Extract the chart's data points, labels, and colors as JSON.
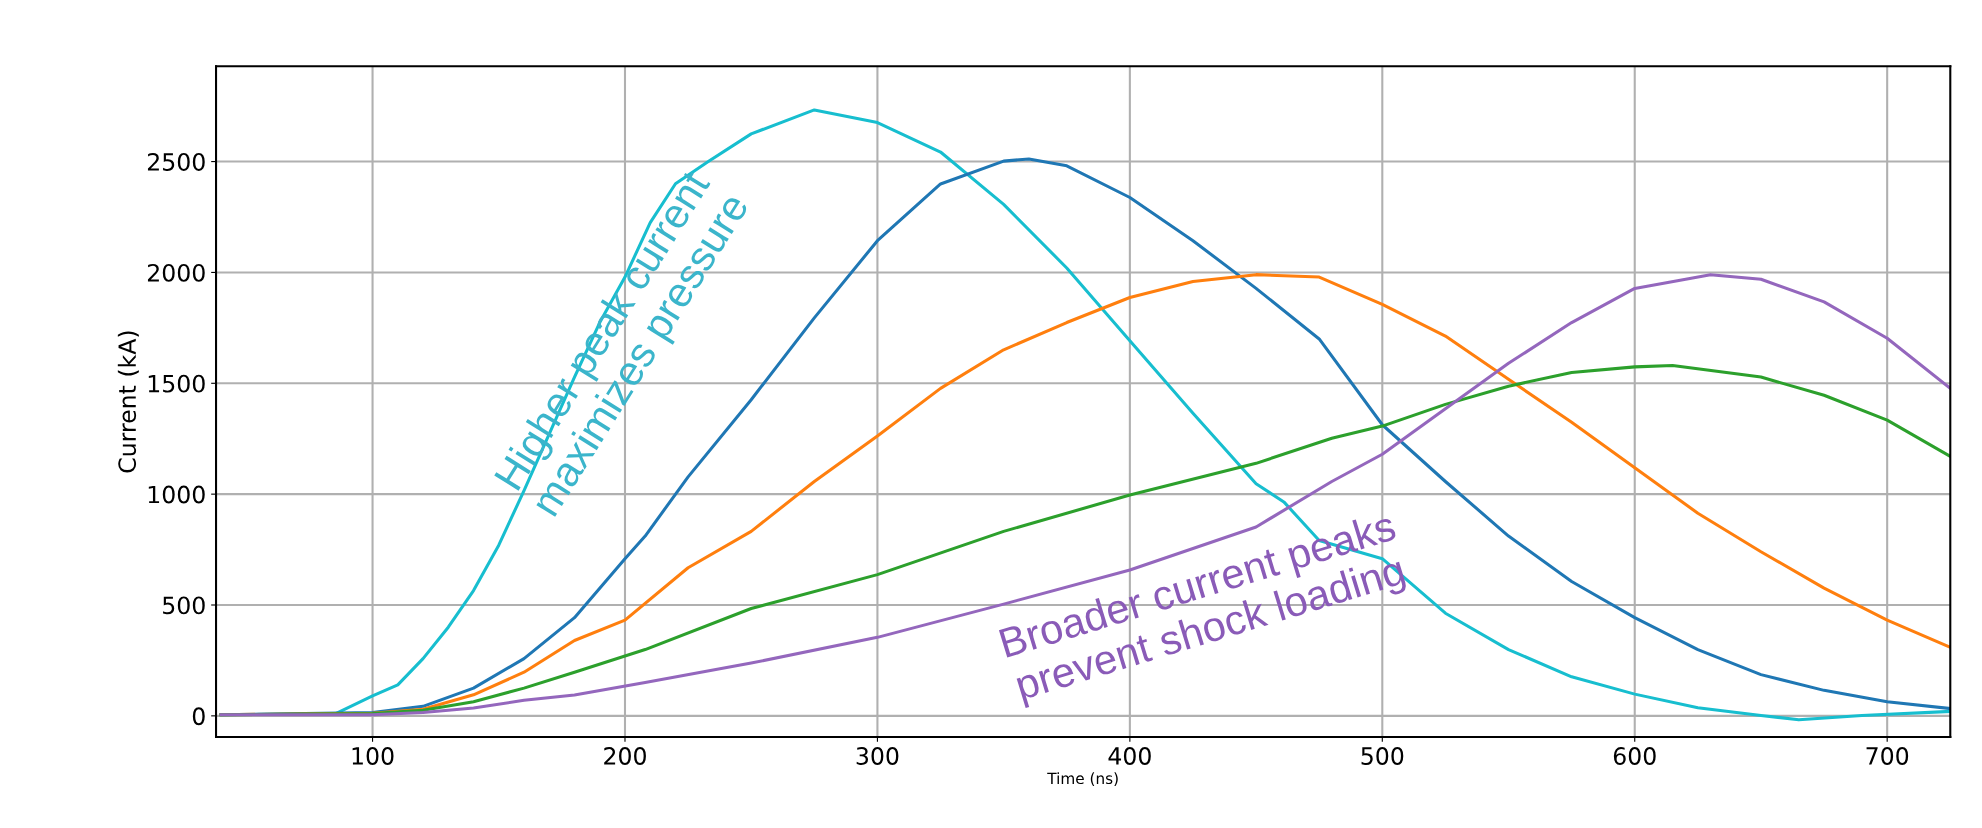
{
  "chart_data": {
    "type": "line",
    "xlabel": "Time (ns)",
    "ylabel": "Current (kA)",
    "xlim": [
      38,
      725
    ],
    "ylim": [
      -95,
      2930
    ],
    "xticks": [
      100,
      200,
      300,
      400,
      500,
      600,
      700
    ],
    "yticks": [
      0,
      500,
      1000,
      1500,
      2000,
      2500
    ],
    "grid": true,
    "marker": "none",
    "line_style": "solid",
    "annotations": [
      "Higher peak current\nmaximizes pressure",
      "Broader current peaks\nprevent shock loading"
    ],
    "series": [
      {
        "color": "#17becf",
        "x": [
          40,
          85,
          100,
          110,
          120,
          130,
          140,
          150,
          160,
          170,
          180,
          190,
          200,
          210,
          220,
          233,
          250,
          275,
          300,
          325,
          350,
          375,
          400,
          425,
          450,
          461,
          475,
          500,
          525,
          550,
          575,
          600,
          625,
          650,
          665,
          690,
          725
        ],
        "values": [
          5,
          8,
          90,
          140,
          258,
          400,
          565,
          770,
          1016,
          1272,
          1528,
          1774,
          1979,
          2225,
          2400,
          2500,
          2625,
          2733,
          2676,
          2543,
          2307,
          2020,
          1692,
          1365,
          1047,
          965,
          791,
          709,
          463,
          299,
          176,
          98,
          37,
          2,
          -18,
          2,
          20
        ]
      },
      {
        "color": "#1f77b4",
        "x": [
          40,
          100,
          120,
          140,
          160,
          180,
          200,
          208,
          225,
          250,
          275,
          300,
          325,
          350,
          360,
          375,
          400,
          425,
          450,
          475,
          500,
          525,
          550,
          575,
          600,
          625,
          650,
          675,
          700,
          725
        ],
        "values": [
          5,
          15,
          43,
          125,
          258,
          443,
          709,
          811,
          1078,
          1426,
          1795,
          2143,
          2399,
          2502,
          2512,
          2481,
          2338,
          2143,
          1928,
          1700,
          1313,
          1057,
          811,
          606,
          443,
          299,
          186,
          115,
          64,
          33
        ]
      },
      {
        "color": "#ff7f0e",
        "x": [
          40,
          100,
          120,
          140,
          160,
          180,
          200,
          225,
          250,
          275,
          300,
          325,
          350,
          375,
          400,
          425,
          450,
          475,
          500,
          525,
          550,
          575,
          600,
          625,
          650,
          675,
          700,
          725
        ],
        "values": [
          5,
          12,
          30,
          95,
          197,
          340,
          432,
          668,
          832,
          1057,
          1262,
          1477,
          1651,
          1774,
          1887,
          1959,
          1990,
          1979,
          1856,
          1713,
          1518,
          1324,
          1119,
          914,
          740,
          576,
          432,
          309
        ]
      },
      {
        "color": "#2ca02c",
        "x": [
          40,
          100,
          120,
          140,
          160,
          180,
          208,
          250,
          300,
          350,
          400,
          450,
          480,
          500,
          525,
          550,
          575,
          600,
          615,
          650,
          675,
          700,
          725
        ],
        "values": [
          5,
          10,
          25,
          64,
          125,
          197,
          299,
          484,
          637,
          832,
          996,
          1139,
          1252,
          1307,
          1405,
          1487,
          1549,
          1574,
          1580,
          1528,
          1446,
          1334,
          1170
        ]
      },
      {
        "color": "#9467bd",
        "x": [
          40,
          100,
          120,
          140,
          160,
          180,
          208,
          250,
          300,
          350,
          400,
          450,
          480,
          500,
          525,
          550,
          575,
          600,
          630,
          650,
          675,
          700,
          725
        ],
        "values": [
          5,
          5,
          15,
          35,
          70,
          94,
          150,
          238,
          354,
          504,
          658,
          852,
          1057,
          1180,
          1385,
          1590,
          1774,
          1928,
          1990,
          1969,
          1867,
          1703,
          1477
        ]
      }
    ]
  }
}
